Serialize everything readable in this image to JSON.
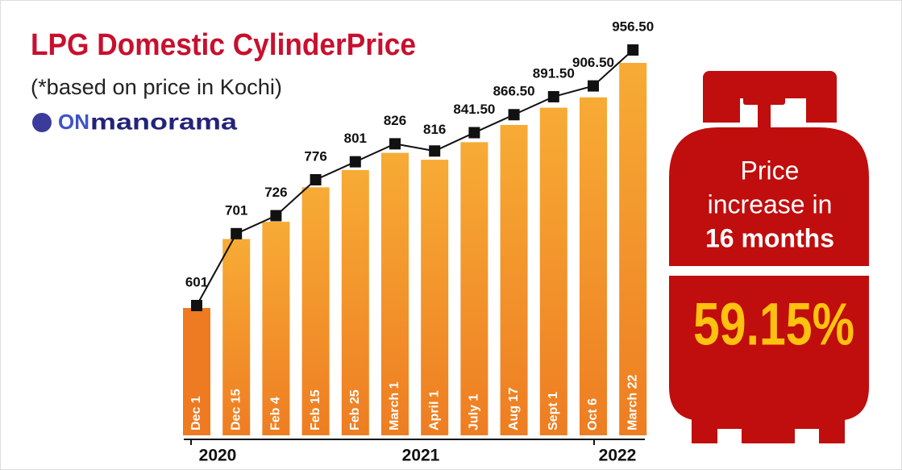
{
  "chart_data": {
    "type": "bar",
    "title": "LPG Domestic CylinderPrice",
    "subtitle": "(*based on price in Kochi)",
    "brand": {
      "prefix": "ON",
      "name": "manorama"
    },
    "categories": [
      "Dec 1",
      "Dec 15",
      "Feb 4",
      "Feb 15",
      "Feb 25",
      "March 1",
      "April 1",
      "July 1",
      "Aug 17",
      "Sept 1",
      "Oct 6",
      "March 22"
    ],
    "values": [
      601,
      701,
      726,
      776,
      801,
      826,
      816,
      841.5,
      866.5,
      891.5,
      906.5,
      956.5
    ],
    "value_labels": [
      "601",
      "701",
      "726",
      "776",
      "801",
      "826",
      "816",
      "841.50",
      "866.50",
      "891.50",
      "906.50",
      "956.50"
    ],
    "years": [
      "2020",
      "2021",
      "2022"
    ],
    "color": "#f39a2a",
    "line_color": "#111111",
    "annotation": {
      "lines": [
        "Price",
        "increase in",
        "16 months"
      ],
      "highlight": "59.15%"
    }
  }
}
